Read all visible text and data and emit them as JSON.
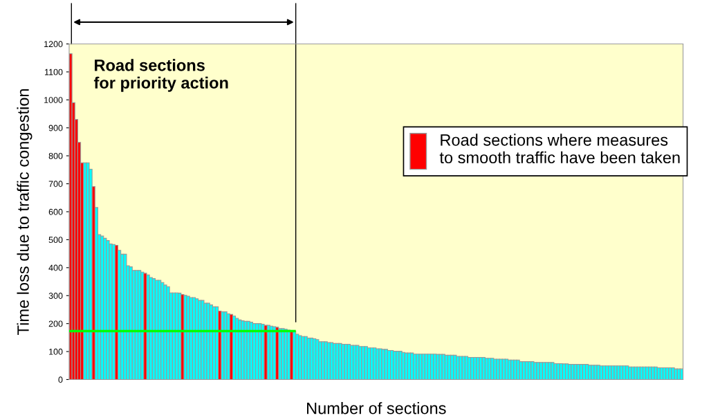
{
  "chart_data": {
    "type": "bar",
    "xlabel": "Number of sections",
    "ylabel": "Time loss due to traffic congestion",
    "annotations": [
      "Road sections\nfor priority action"
    ],
    "categories": [
      null,
      null,
      null,
      null,
      null,
      null,
      null,
      null,
      null,
      null,
      null,
      null,
      null,
      null,
      null,
      null,
      null,
      null,
      null,
      null,
      null,
      null,
      null,
      null,
      null,
      null,
      null,
      null,
      null,
      null,
      null,
      null,
      null,
      null,
      null,
      null,
      null,
      null,
      null,
      null,
      null,
      null,
      null,
      null,
      null,
      null,
      null,
      null,
      null,
      null,
      null,
      null,
      null,
      null,
      null,
      null,
      null,
      null,
      null,
      null,
      null,
      null,
      null,
      null,
      null,
      null,
      null,
      null,
      null,
      null,
      null,
      null,
      null,
      null,
      null,
      null,
      null,
      null,
      null,
      null,
      null,
      null,
      null,
      null,
      null,
      null,
      null,
      null,
      null,
      null,
      null,
      null,
      null,
      null,
      null,
      null,
      null,
      null,
      null,
      null,
      null,
      null,
      null,
      null,
      null,
      null,
      null,
      null,
      null,
      null,
      null,
      null,
      null,
      null,
      null,
      null,
      null,
      null,
      null,
      null,
      null,
      null,
      null,
      null,
      null,
      null,
      null,
      null,
      null,
      null,
      null,
      null,
      null,
      null,
      null,
      null,
      null,
      null,
      null,
      null,
      null,
      null,
      null,
      null,
      null,
      null,
      null,
      null,
      null,
      null,
      null,
      null,
      null,
      null,
      null,
      null,
      null,
      null,
      null,
      null,
      null,
      null,
      null,
      null,
      null,
      null,
      null,
      null,
      null,
      null,
      null,
      null,
      null,
      null,
      null,
      null,
      null,
      null,
      null,
      null,
      null,
      null,
      null,
      null,
      null,
      null,
      null,
      null,
      null,
      null,
      null,
      null,
      null,
      null,
      null,
      null,
      null,
      null,
      null,
      null,
      null,
      null,
      null,
      null,
      null,
      null,
      null,
      null,
      null,
      null,
      null,
      null,
      null,
      null
    ],
    "series": [
      {
        "color": "#00ffff",
        "values": [
          null,
          null,
          null,
          null,
          null,
          775,
          775,
          752,
          null,
          615,
          518,
          513,
          505,
          497,
          485,
          483,
          null,
          462,
          448,
          448,
          407,
          403,
          390,
          390,
          390,
          384,
          null,
          374,
          365,
          361,
          355,
          355,
          347,
          338,
          332,
          310,
          310,
          310,
          309,
          null,
          301,
          298,
          293,
          293,
          289,
          283,
          283,
          273,
          273,
          267,
          260,
          260,
          null,
          242,
          242,
          235,
          null,
          227,
          219,
          213,
          210,
          208,
          208,
          205,
          200,
          200,
          200,
          198,
          null,
          194,
          191,
          189,
          null,
          182,
          182,
          180,
          177,
          null,
          173,
          162,
          157,
          154,
          154,
          148,
          148,
          146,
          143,
          135,
          135,
          135,
          132,
          132,
          129,
          129,
          129,
          126,
          126,
          126,
          122,
          122,
          122,
          118,
          118,
          118,
          113,
          113,
          113,
          110,
          110,
          108,
          108,
          104,
          104,
          101,
          101,
          101,
          97,
          95,
          95,
          95,
          91,
          91,
          91,
          91,
          91,
          91,
          91,
          91,
          90,
          90,
          90,
          87,
          87,
          87,
          87,
          83,
          83,
          83,
          83,
          79,
          79,
          79,
          79,
          79,
          79,
          76,
          76,
          76,
          73,
          73,
          73,
          73,
          73,
          70,
          70,
          70,
          70,
          64,
          64,
          64,
          64,
          64,
          61,
          61,
          61,
          61,
          61,
          61,
          61,
          57,
          57,
          57,
          56,
          56,
          54,
          54,
          54,
          54,
          54,
          54,
          54,
          51,
          51,
          51,
          51,
          49,
          49,
          49,
          49,
          49,
          49,
          49,
          49,
          49,
          49,
          45,
          45,
          45,
          45,
          45,
          45,
          45,
          45,
          45,
          45,
          42,
          42,
          42,
          42,
          42,
          42,
          38,
          38,
          38
        ]
      },
      {
        "name": "Road sections where measures\nto smooth traffic have been taken",
        "color": "#ff0000",
        "values": [
          1165,
          990,
          930,
          848,
          775,
          null,
          null,
          null,
          690,
          null,
          null,
          null,
          null,
          null,
          null,
          null,
          480,
          null,
          null,
          null,
          null,
          null,
          null,
          null,
          null,
          null,
          380,
          null,
          null,
          null,
          null,
          null,
          null,
          null,
          null,
          null,
          null,
          null,
          null,
          304,
          null,
          null,
          null,
          null,
          null,
          null,
          null,
          null,
          null,
          null,
          null,
          null,
          245,
          null,
          null,
          null,
          233,
          null,
          null,
          null,
          null,
          null,
          null,
          null,
          null,
          null,
          null,
          null,
          194,
          null,
          null,
          null,
          187,
          null,
          null,
          null,
          null,
          175,
          null,
          null,
          null,
          null,
          null,
          null,
          null,
          null,
          null,
          null,
          null,
          null,
          null,
          null,
          null,
          null,
          null,
          null,
          null,
          null,
          null,
          null,
          null,
          null,
          null,
          null,
          null,
          null,
          null,
          null,
          null,
          null,
          null,
          null,
          null,
          null,
          null,
          null,
          null,
          null,
          null,
          null,
          null,
          null,
          null,
          null,
          null,
          null,
          null,
          null,
          null,
          null,
          null,
          null,
          null,
          null,
          null,
          null,
          null,
          null,
          null,
          null,
          null,
          null,
          null,
          null,
          null,
          null,
          null,
          null,
          null,
          null,
          null,
          null,
          null,
          null,
          null,
          null,
          null,
          null,
          null,
          null,
          null,
          null,
          null,
          null,
          null,
          null,
          null,
          null,
          null,
          null,
          null,
          null,
          null,
          null,
          null,
          null,
          null,
          null,
          null,
          null,
          null,
          null,
          null,
          null,
          null,
          null,
          null,
          null,
          null,
          null,
          null,
          null,
          null,
          null,
          null,
          null,
          null,
          null,
          null,
          null,
          null,
          null,
          null,
          null,
          null,
          null,
          null,
          null,
          null,
          null,
          null,
          null,
          null,
          null
        ]
      }
    ],
    "ylim": [
      0,
      1200
    ],
    "yticks": [
      0,
      100,
      200,
      300,
      400,
      500,
      600,
      700,
      800,
      900,
      1000,
      1100,
      1200
    ],
    "ref_lines": [
      {
        "axis": "y",
        "value": 173,
        "color": "#00ff00"
      }
    ],
    "legend": "right"
  }
}
